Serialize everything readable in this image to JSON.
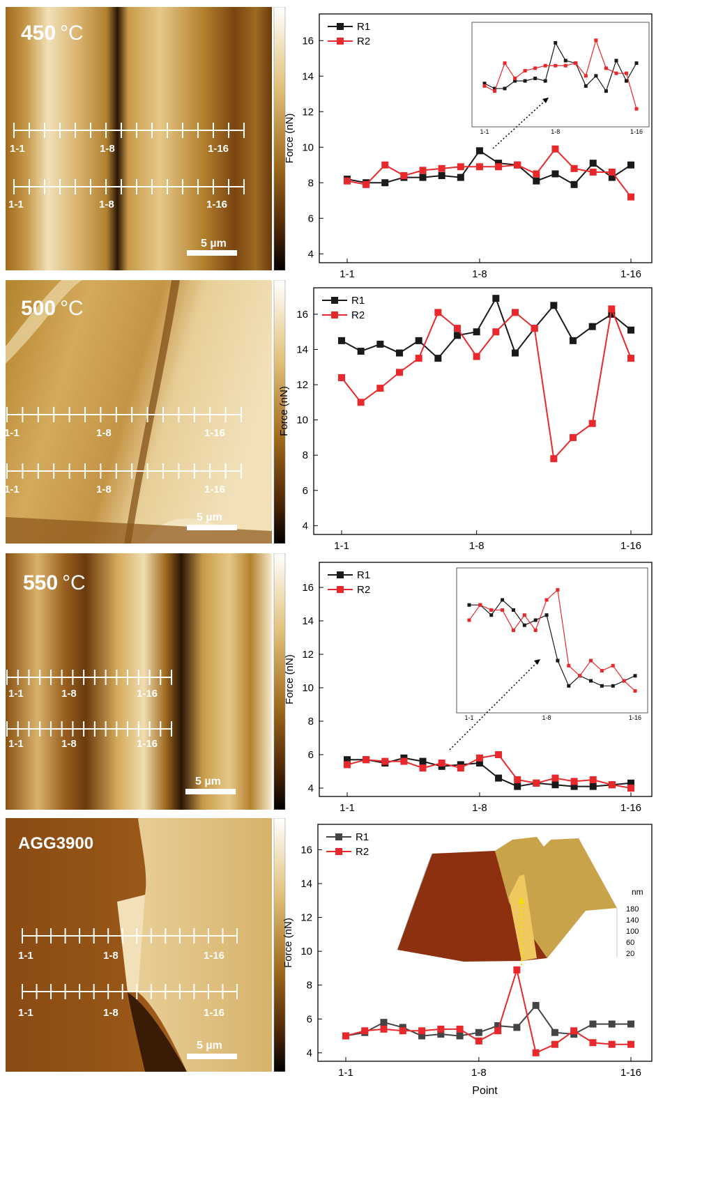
{
  "panels": [
    {
      "temp_value": "450",
      "temp_unit": "°C",
      "line_labels": [
        [
          "1-1",
          "1-8",
          "1-16"
        ],
        [
          "1-1",
          "1-8",
          "1-16"
        ]
      ],
      "scalebar": "5 µm",
      "colorbar_ticks": [
        "",
        "",
        "",
        "",
        "",
        ""
      ]
    },
    {
      "temp_value": "500",
      "temp_unit": "°C",
      "line_labels": [
        [
          "1-1",
          "1-8",
          "1-16"
        ],
        [
          "1-1",
          "1-8",
          "1-16"
        ]
      ],
      "scalebar": "5 µm",
      "colorbar_ticks": [
        "",
        "",
        "",
        "",
        "",
        ""
      ]
    },
    {
      "temp_value": "550",
      "temp_unit": "°C",
      "line_labels": [
        [
          "1-1",
          "1-8",
          "1-16"
        ],
        [
          "1-1",
          "1-8",
          "1-16"
        ]
      ],
      "scalebar": "5 µm",
      "colorbar_ticks": [
        "",
        "",
        "",
        "",
        "",
        ""
      ]
    },
    {
      "temp_value": "AGG3900",
      "temp_unit": "",
      "line_labels": [
        [
          "1-1",
          "1-8",
          "1-16"
        ],
        [
          "1-1",
          "1-8",
          "1-16"
        ]
      ],
      "scalebar": "5 µm",
      "colorbar_ticks": [
        "",
        "",
        "",
        "",
        "",
        ""
      ]
    }
  ],
  "chart_data": [
    {
      "type": "line",
      "ylabel": "Force (nN)",
      "xlabel": "",
      "ylim": [
        3.5,
        17.5
      ],
      "yticks": [
        4,
        6,
        8,
        10,
        12,
        14,
        16
      ],
      "xticks": [
        "1-1",
        "1-8",
        "1-16"
      ],
      "x": [
        1,
        2,
        3,
        4,
        5,
        6,
        7,
        8,
        9,
        10,
        11,
        12,
        13,
        14,
        15,
        16
      ],
      "series": [
        {
          "name": "R1",
          "color": "#1a1a1a",
          "values": [
            8.2,
            8.0,
            8.0,
            8.3,
            8.3,
            8.4,
            8.3,
            9.8,
            9.1,
            9.0,
            8.1,
            8.5,
            7.9,
            9.1,
            8.3,
            9.0
          ]
        },
        {
          "name": "R2",
          "color": "#e8282b",
          "values": [
            8.1,
            7.9,
            9.0,
            8.4,
            8.7,
            8.8,
            8.9,
            8.9,
            8.9,
            9.0,
            8.5,
            9.9,
            8.8,
            8.6,
            8.6,
            7.2
          ]
        }
      ],
      "legend": "top-left",
      "inset": {
        "type": "line",
        "xticks": [
          "1-1",
          "1-8",
          "1-16"
        ],
        "series": [
          {
            "name": "R1",
            "color": "#1a1a1a",
            "values": [
              8.2,
              8.0,
              8.0,
              8.3,
              8.3,
              8.4,
              8.3,
              9.8,
              9.1,
              9.0,
              8.1,
              8.5,
              7.9,
              9.1,
              8.3,
              9.0
            ]
          },
          {
            "name": "R2",
            "color": "#e8282b",
            "values": [
              8.1,
              7.9,
              9.0,
              8.4,
              8.7,
              8.8,
              8.9,
              8.9,
              8.9,
              9.0,
              8.5,
              9.9,
              8.8,
              8.6,
              8.6,
              7.2
            ]
          }
        ]
      }
    },
    {
      "type": "line",
      "ylabel": "Force (nN)",
      "xlabel": "",
      "ylim": [
        3.5,
        17.5
      ],
      "yticks": [
        4,
        6,
        8,
        10,
        12,
        14,
        16
      ],
      "xticks": [
        "1-1",
        "1-8",
        "1-16"
      ],
      "x": [
        1,
        2,
        3,
        4,
        5,
        6,
        7,
        8,
        9,
        10,
        11,
        12,
        13,
        14,
        15,
        16
      ],
      "series": [
        {
          "name": "R1",
          "color": "#1a1a1a",
          "values": [
            14.5,
            13.9,
            14.3,
            13.8,
            14.5,
            13.5,
            14.8,
            15.0,
            16.9,
            13.8,
            15.2,
            16.5,
            14.5,
            15.3,
            16.0,
            15.1
          ]
        },
        {
          "name": "R2",
          "color": "#e8282b",
          "values": [
            12.4,
            11.0,
            11.8,
            12.7,
            13.5,
            16.1,
            15.2,
            13.6,
            15.0,
            16.1,
            15.2,
            7.8,
            9.0,
            9.8,
            16.3,
            13.5
          ]
        }
      ],
      "legend": "top-left"
    },
    {
      "type": "line",
      "ylabel": "Force (nN)",
      "xlabel": "",
      "ylim": [
        3.5,
        17.5
      ],
      "yticks": [
        4,
        6,
        8,
        10,
        12,
        14,
        16
      ],
      "xticks": [
        "1-1",
        "1-8",
        "1-16"
      ],
      "x": [
        1,
        2,
        3,
        4,
        5,
        6,
        7,
        8,
        9,
        10,
        11,
        12,
        13,
        14,
        15,
        16
      ],
      "series": [
        {
          "name": "R1",
          "color": "#1a1a1a",
          "values": [
            5.7,
            5.7,
            5.5,
            5.8,
            5.6,
            5.3,
            5.4,
            5.5,
            4.6,
            4.1,
            4.3,
            4.2,
            4.1,
            4.1,
            4.2,
            4.3
          ]
        },
        {
          "name": "R2",
          "color": "#e8282b",
          "values": [
            5.4,
            5.7,
            5.6,
            5.6,
            5.2,
            5.5,
            5.2,
            5.8,
            6.0,
            4.5,
            4.3,
            4.6,
            4.4,
            4.5,
            4.2,
            4.0
          ]
        }
      ],
      "legend": "top-left",
      "inset": {
        "type": "line",
        "xticks": [
          "1-1",
          "1-8",
          "1-16"
        ],
        "series": [
          {
            "name": "R1",
            "color": "#1a1a1a",
            "values": [
              5.7,
              5.7,
              5.5,
              5.8,
              5.6,
              5.3,
              5.4,
              5.5,
              4.6,
              4.1,
              4.3,
              4.2,
              4.1,
              4.1,
              4.2,
              4.3
            ]
          },
          {
            "name": "R2",
            "color": "#e8282b",
            "values": [
              5.4,
              5.7,
              5.6,
              5.6,
              5.2,
              5.5,
              5.2,
              5.8,
              6.0,
              4.5,
              4.3,
              4.6,
              4.4,
              4.5,
              4.2,
              4.0
            ]
          }
        ]
      }
    },
    {
      "type": "line",
      "ylabel": "Force (nN)",
      "xlabel": "Point",
      "ylim": [
        3.5,
        17.5
      ],
      "yticks": [
        4,
        6,
        8,
        10,
        12,
        14,
        16
      ],
      "xticks": [
        "1-1",
        "1-8",
        "1-16"
      ],
      "x": [
        1,
        2,
        3,
        4,
        5,
        6,
        7,
        8,
        9,
        10,
        11,
        12,
        13,
        14,
        15,
        16
      ],
      "series": [
        {
          "name": "R1",
          "color": "#444444",
          "values": [
            5.0,
            5.2,
            5.8,
            5.5,
            5.0,
            5.1,
            5.0,
            5.2,
            5.6,
            5.5,
            6.8,
            5.2,
            5.1,
            5.7,
            5.7,
            5.7
          ]
        },
        {
          "name": "R2",
          "color": "#e8282b",
          "values": [
            5.0,
            5.3,
            5.4,
            5.3,
            5.3,
            5.4,
            5.4,
            4.7,
            5.3,
            8.9,
            4.0,
            4.5,
            5.3,
            4.6,
            4.5,
            4.5
          ]
        }
      ],
      "legend": "top-left",
      "inset3d": {
        "unit": "nm",
        "zticks": [
          "180",
          "140",
          "100",
          "60",
          "20"
        ]
      }
    }
  ]
}
